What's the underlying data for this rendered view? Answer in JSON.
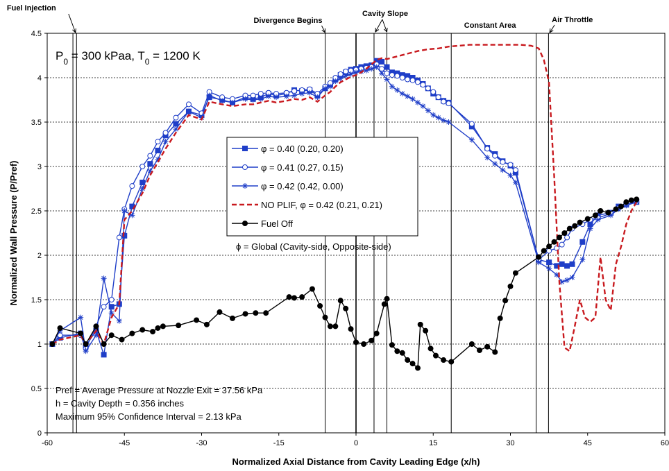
{
  "chart_data": {
    "type": "line",
    "xlabel": "Normalized Axial Distance from Cavity Leading Edge (x/h)",
    "ylabel": "Normalized Wall Pressure (P/Pref)",
    "xlim": [
      -60,
      60
    ],
    "ylim": [
      0,
      4.5
    ],
    "x_ticks": [
      "-60",
      "-45",
      "-30",
      "-15",
      "0",
      "15",
      "30",
      "45",
      "60"
    ],
    "y_ticks": [
      "0",
      "0.5",
      "1",
      "1.5",
      "2",
      "2.5",
      "3",
      "3.5",
      "4",
      "4.5"
    ],
    "grid": "horizontal",
    "conditions": {
      "base": "P",
      "sub0": "0",
      "mid": " = 300 kPaa, T",
      "sub1": "0",
      "end": " = 1200 K"
    },
    "notes": [
      "Pref = Average Pressure at Nozzle Exit = 37.56 kPa",
      "h = Cavity Depth = 0.356 inches",
      "Maximum 95% Confidence Interval  = 2.13 kPa"
    ],
    "legend_note": "ϕ = Global (Cavity-side, Opposite-side)",
    "annotations": [
      {
        "text": "Fuel Injection",
        "x": -54.5,
        "arrow": true
      },
      {
        "text": "Divergence Begins",
        "x": -6,
        "arrow": true
      },
      {
        "text": "Cavity Slope",
        "x": 3.5,
        "arrow": true
      },
      {
        "text": "Constant Area",
        "x": 26,
        "arrow": false
      },
      {
        "text": "Air Throttle",
        "x": 37.5,
        "arrow": true
      }
    ],
    "vlines": [
      -55,
      -54.3,
      -6,
      0,
      3.5,
      6,
      18.5,
      35,
      37.4
    ],
    "series": [
      {
        "name": "φ = 0.40 (0.20, 0.20)",
        "color": "#1f3ec8",
        "dash": "",
        "marker": "square_filled",
        "x": [
          -59,
          -57.5,
          -53.5,
          -52.5,
          -50.5,
          -49,
          -47.5,
          -46,
          -45,
          -43.5,
          -41.5,
          -40,
          -38.5,
          -37,
          -35,
          -32.5,
          -30,
          -28.5,
          -26,
          -24,
          -21.5,
          -20,
          -18.5,
          -17,
          -15.5,
          -13.5,
          -12,
          -10.5,
          -9,
          -7.5,
          -6,
          -5,
          -4,
          -3,
          -2,
          -1,
          0,
          1,
          2,
          3,
          4,
          5,
          6,
          7,
          8,
          9,
          10,
          11,
          12,
          13,
          14,
          15,
          16,
          17,
          18,
          22.5,
          25.5,
          27,
          28.5,
          30,
          31,
          35.5,
          37.5,
          39,
          40,
          41,
          42,
          44,
          45.5,
          47,
          49.5,
          51,
          52.5,
          54.5
        ],
        "y": [
          1.0,
          1.07,
          1.12,
          0.98,
          1.15,
          0.88,
          1.42,
          1.45,
          2.22,
          2.55,
          2.82,
          3.03,
          3.18,
          3.35,
          3.48,
          3.62,
          3.58,
          3.78,
          3.75,
          3.72,
          3.78,
          3.76,
          3.78,
          3.82,
          3.8,
          3.82,
          3.86,
          3.85,
          3.86,
          3.8,
          3.88,
          3.92,
          3.98,
          4.03,
          4.06,
          4.09,
          4.1,
          4.12,
          4.13,
          4.14,
          4.19,
          4.18,
          4.12,
          4.06,
          4.05,
          4.03,
          4.02,
          4.0,
          3.97,
          3.93,
          3.88,
          3.82,
          3.78,
          3.74,
          3.72,
          3.45,
          3.21,
          3.14,
          3.06,
          3.01,
          2.93,
          1.95,
          1.92,
          1.88,
          1.9,
          1.88,
          1.9,
          2.15,
          2.35,
          2.45,
          2.48,
          2.55,
          2.57,
          2.6
        ]
      },
      {
        "name": "φ = 0.41 (0.27, 0.15)",
        "color": "#1f3ec8",
        "dash": "",
        "marker": "circle_open",
        "x": [
          -59,
          -57.5,
          -53.5,
          -52.5,
          -50.5,
          -49,
          -47.5,
          -46,
          -45,
          -43.5,
          -41.5,
          -40,
          -38.5,
          -37,
          -35,
          -32.5,
          -30,
          -28.5,
          -26,
          -24,
          -21.5,
          -20,
          -18.5,
          -17,
          -15.5,
          -13.5,
          -12,
          -10.5,
          -9,
          -7.5,
          -6,
          -5,
          -4,
          -3,
          -2,
          -1,
          0,
          1,
          2,
          3,
          4,
          5,
          6,
          7,
          8,
          9,
          10,
          11,
          12,
          13,
          14,
          15,
          16,
          17,
          18,
          22.5,
          25.5,
          27,
          28.5,
          30,
          31,
          35.5,
          37.5,
          39,
          40,
          41,
          42,
          44,
          45.5,
          47,
          49.5,
          51,
          52.5,
          54.5
        ],
        "y": [
          1.0,
          1.1,
          1.1,
          0.95,
          1.2,
          1.42,
          1.5,
          2.2,
          2.52,
          2.78,
          3.0,
          3.12,
          3.28,
          3.38,
          3.55,
          3.7,
          3.6,
          3.84,
          3.78,
          3.76,
          3.8,
          3.8,
          3.82,
          3.83,
          3.82,
          3.83,
          3.85,
          3.86,
          3.87,
          3.82,
          3.9,
          3.94,
          4.0,
          4.04,
          4.07,
          4.08,
          4.09,
          4.1,
          4.11,
          4.12,
          4.15,
          4.1,
          4.05,
          4.03,
          4.02,
          4.0,
          3.98,
          3.97,
          3.95,
          3.92,
          3.88,
          3.84,
          3.78,
          3.73,
          3.71,
          3.48,
          3.2,
          3.12,
          3.05,
          3.02,
          2.96,
          1.95,
          2.05,
          2.08,
          2.12,
          2.2,
          2.3,
          2.35,
          2.4,
          2.42,
          2.47,
          2.53,
          2.57,
          2.6
        ]
      },
      {
        "name": "φ = 0.42 (0.42, 0.00)",
        "color": "#1f3ec8",
        "dash": "",
        "marker": "star",
        "x": [
          -59,
          -57.5,
          -53.5,
          -52.5,
          -50.5,
          -49,
          -47.5,
          -46,
          -45,
          -43.5,
          -41.5,
          -40,
          -38.5,
          -37,
          -35,
          -32.5,
          -30,
          -28.5,
          -26,
          -24,
          -21.5,
          -20,
          -18.5,
          -17,
          -15.5,
          -13.5,
          -12,
          -10.5,
          -9,
          -7.5,
          -6,
          -5,
          -4,
          -3,
          -2,
          -1,
          0,
          1,
          2,
          3,
          4,
          5,
          6,
          7,
          8,
          9,
          10,
          11,
          12,
          13,
          14,
          15,
          16,
          17,
          18,
          22.5,
          25.5,
          27,
          28.5,
          30,
          31,
          35.5,
          37.5,
          39,
          40,
          41,
          42,
          44,
          45.5,
          47,
          49.5,
          51,
          52.5,
          54.5
        ],
        "y": [
          1.0,
          1.15,
          1.3,
          0.92,
          1.1,
          1.74,
          1.35,
          1.26,
          2.5,
          2.45,
          2.75,
          2.95,
          3.08,
          3.28,
          3.42,
          3.62,
          3.55,
          3.8,
          3.74,
          3.72,
          3.76,
          3.75,
          3.76,
          3.79,
          3.78,
          3.79,
          3.8,
          3.82,
          3.83,
          3.78,
          3.88,
          3.9,
          3.96,
          3.99,
          4.02,
          4.04,
          4.06,
          4.07,
          4.08,
          4.1,
          4.12,
          4.05,
          3.98,
          3.9,
          3.86,
          3.82,
          3.79,
          3.76,
          3.72,
          3.68,
          3.63,
          3.58,
          3.55,
          3.52,
          3.5,
          3.3,
          3.1,
          3.03,
          2.96,
          2.9,
          2.82,
          1.92,
          1.85,
          1.78,
          1.7,
          1.72,
          1.75,
          1.95,
          2.3,
          2.4,
          2.45,
          2.52,
          2.56,
          2.6
        ]
      },
      {
        "name": "NO PLIF, φ = 0.42 (0.21, 0.21)",
        "color": "#c8191e",
        "dash": "7,4",
        "marker": "none",
        "x": [
          -59,
          -57.5,
          -53.5,
          -52.5,
          -50.5,
          -49,
          -47.5,
          -46,
          -45,
          -43.5,
          -41.5,
          -40,
          -38.5,
          -37,
          -35,
          -32.5,
          -30,
          -28.5,
          -26,
          -24,
          -21.5,
          -20,
          -18.5,
          -17,
          -15.5,
          -13.5,
          -12,
          -10.5,
          -9,
          -7.5,
          -6,
          -5,
          -4,
          -3,
          -2,
          -1,
          0,
          1,
          2,
          3,
          4,
          5,
          6,
          8,
          10,
          12,
          14,
          16,
          18,
          20,
          22,
          24,
          26,
          28,
          30,
          32,
          34,
          35.5,
          36.5,
          37.5,
          38.5,
          39.5,
          40.5,
          41.5,
          42.5,
          43.5,
          44.5,
          45.5,
          46.5,
          47.5,
          48.5,
          49.5,
          50.5,
          51.5,
          52.5,
          53.5,
          54.5
        ],
        "y": [
          1.0,
          1.05,
          1.1,
          1.0,
          1.15,
          1.0,
          1.3,
          1.45,
          2.4,
          2.5,
          2.7,
          2.9,
          3.05,
          3.2,
          3.38,
          3.58,
          3.53,
          3.73,
          3.7,
          3.68,
          3.7,
          3.7,
          3.72,
          3.74,
          3.72,
          3.74,
          3.76,
          3.75,
          3.78,
          3.73,
          3.8,
          3.84,
          3.9,
          3.95,
          3.98,
          4.01,
          4.03,
          4.06,
          4.1,
          4.15,
          4.2,
          4.22,
          4.21,
          4.24,
          4.27,
          4.3,
          4.32,
          4.33,
          4.35,
          4.36,
          4.37,
          4.37,
          4.37,
          4.37,
          4.37,
          4.37,
          4.36,
          4.33,
          4.2,
          3.95,
          2.9,
          1.7,
          0.96,
          0.92,
          1.2,
          1.5,
          1.3,
          1.25,
          1.3,
          1.98,
          1.5,
          1.38,
          1.9,
          2.1,
          2.35,
          2.5,
          2.6
        ]
      },
      {
        "name": "Fuel Off",
        "color": "#000000",
        "dash": "",
        "marker": "circle_filled",
        "x": [
          -59,
          -57.5,
          -53.5,
          -52.5,
          -50.5,
          -49,
          -47.5,
          -45.5,
          -43.5,
          -41.5,
          -39.5,
          -38.5,
          -37.5,
          -34.5,
          -31,
          -29,
          -26.5,
          -24,
          -21.5,
          -19.5,
          -17.5,
          -13,
          -12,
          -10.5,
          -8.5,
          -7,
          -6,
          -5,
          -4,
          -3,
          -2,
          -1,
          0,
          1.5,
          3,
          4,
          5.5,
          6,
          7,
          8,
          9,
          10,
          11,
          12,
          12.5,
          13.5,
          14.5,
          15.5,
          17,
          18.5,
          22.5,
          24,
          25.5,
          27,
          28,
          29,
          30,
          31,
          35.5,
          36.5,
          37.5,
          38.5,
          39.5,
          40.5,
          41.5,
          42.5,
          43.5,
          45,
          46.5,
          47.5,
          49,
          50.5,
          51.5,
          52.5,
          53.5,
          54.5
        ],
        "y": [
          1.0,
          1.18,
          1.12,
          1.0,
          1.2,
          1.0,
          1.1,
          1.05,
          1.12,
          1.16,
          1.14,
          1.18,
          1.2,
          1.21,
          1.27,
          1.22,
          1.36,
          1.29,
          1.34,
          1.35,
          1.35,
          1.53,
          1.52,
          1.53,
          1.62,
          1.43,
          1.3,
          1.2,
          1.2,
          1.49,
          1.4,
          1.17,
          1.02,
          1.0,
          1.04,
          1.12,
          1.45,
          1.51,
          0.99,
          0.92,
          0.9,
          0.82,
          0.78,
          0.73,
          1.22,
          1.15,
          0.95,
          0.87,
          0.82,
          0.8,
          1.0,
          0.93,
          0.97,
          0.91,
          1.29,
          1.49,
          1.65,
          1.8,
          1.98,
          2.05,
          2.1,
          2.15,
          2.2,
          2.25,
          2.3,
          2.33,
          2.37,
          2.41,
          2.45,
          2.5,
          2.48,
          2.52,
          2.55,
          2.6,
          2.62,
          2.63
        ]
      }
    ]
  }
}
